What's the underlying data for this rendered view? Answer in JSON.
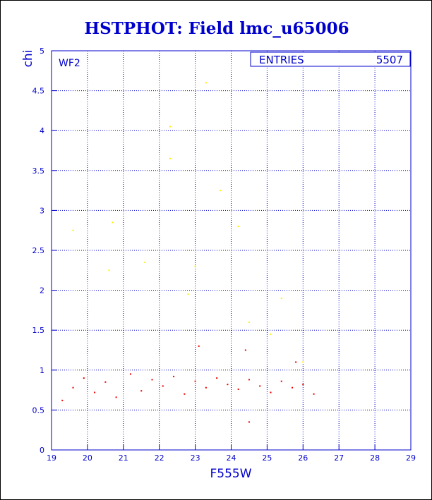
{
  "chart_data": {
    "type": "scatter",
    "title": "HSTPHOT: Field lmc_u65006",
    "xlabel": "F555W",
    "ylabel": "chi",
    "xlim": [
      19,
      29
    ],
    "ylim": [
      0,
      5
    ],
    "x_ticks": [
      "19",
      "20",
      "21",
      "22",
      "23",
      "24",
      "25",
      "26",
      "27",
      "28",
      "29"
    ],
    "y_ticks": [
      "0",
      "0.5",
      "1",
      "1.5",
      "2",
      "2.5",
      "3",
      "3.5",
      "4",
      "4.5",
      "5"
    ],
    "grid": true,
    "panel_label": "WF2",
    "stats_box": {
      "label": "ENTRIES",
      "value": "5507"
    },
    "colors": {
      "title": "#0000cc",
      "axes": "#0000cc",
      "grid": "#0000cc",
      "main": "#ee0000",
      "flagged": "#ffee00"
    },
    "series": [
      {
        "points": [
          [
            19.3,
            0.62
          ],
          [
            19.6,
            0.78
          ],
          [
            19.9,
            0.9
          ],
          [
            20.2,
            0.72
          ],
          [
            20.5,
            0.85
          ],
          [
            20.8,
            0.66
          ],
          [
            21.2,
            0.95
          ],
          [
            21.5,
            0.74
          ],
          [
            21.8,
            0.88
          ],
          [
            22.1,
            0.8
          ],
          [
            22.4,
            0.92
          ],
          [
            22.7,
            0.7
          ],
          [
            23.0,
            0.86
          ],
          [
            23.3,
            0.78
          ],
          [
            23.6,
            0.9
          ],
          [
            23.9,
            0.82
          ],
          [
            24.2,
            0.76
          ],
          [
            24.5,
            0.88
          ],
          [
            24.8,
            0.8
          ],
          [
            25.1,
            0.72
          ],
          [
            25.4,
            0.86
          ],
          [
            25.7,
            0.78
          ],
          [
            26.0,
            0.82
          ],
          [
            26.3,
            0.7
          ],
          [
            24.5,
            0.35
          ],
          [
            23.1,
            1.3
          ],
          [
            24.4,
            1.25
          ],
          [
            25.8,
            1.1
          ]
        ]
      },
      {
        "points": [
          [
            23.3,
            4.6
          ],
          [
            22.3,
            4.05
          ],
          [
            22.3,
            3.65
          ],
          [
            23.7,
            3.25
          ],
          [
            24.2,
            2.8
          ],
          [
            21.6,
            2.35
          ],
          [
            23.0,
            2.3
          ],
          [
            25.4,
            1.9
          ],
          [
            20.6,
            2.25
          ],
          [
            22.8,
            1.95
          ],
          [
            24.5,
            1.6
          ],
          [
            19.6,
            2.75
          ],
          [
            20.7,
            2.85
          ],
          [
            26.0,
            1.1
          ],
          [
            25.1,
            1.45
          ]
        ]
      }
    ]
  }
}
